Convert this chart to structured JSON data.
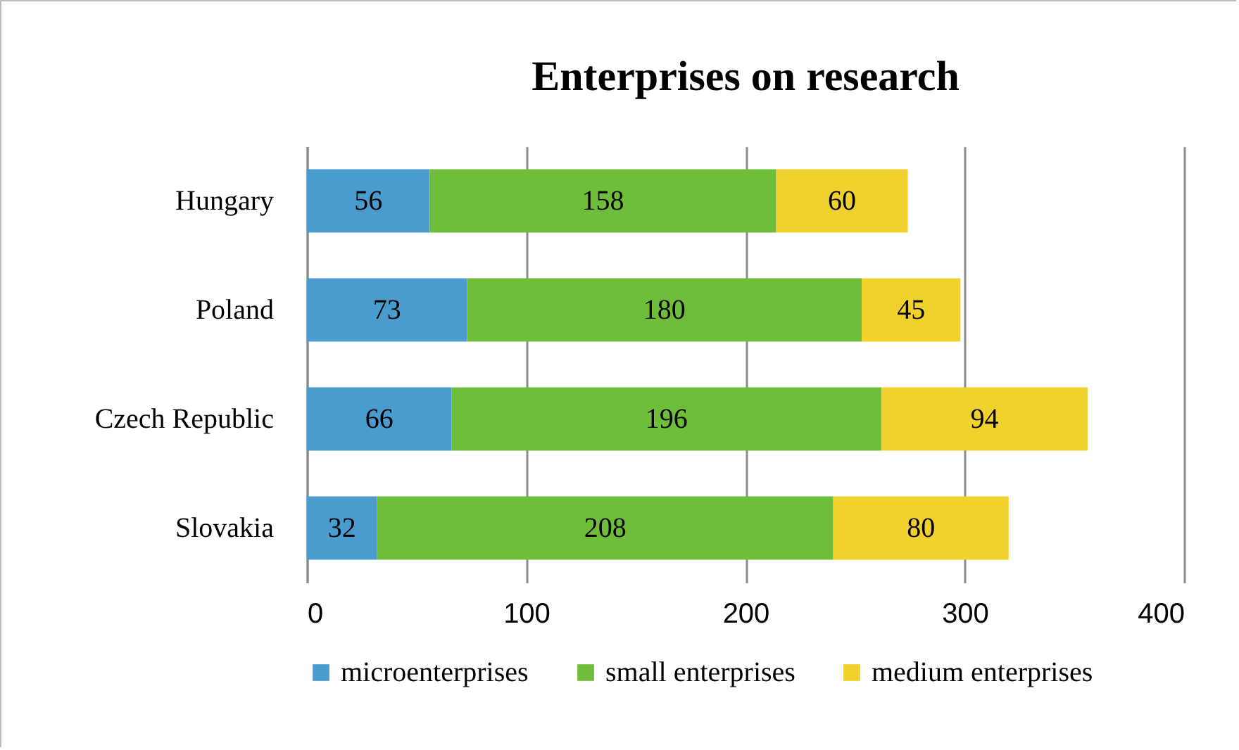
{
  "chart_data": {
    "type": "bar",
    "title": "Enterprises on research",
    "orientation": "horizontal",
    "stacked": true,
    "categories": [
      "Hungary",
      "Poland",
      "Czech Republic",
      "Slovakia"
    ],
    "series": [
      {
        "name": "microenterprises",
        "color": "#4a9ccf",
        "values": [
          56,
          73,
          66,
          32
        ]
      },
      {
        "name": "small enterprises",
        "color": "#6fbe3b",
        "values": [
          158,
          180,
          196,
          208
        ]
      },
      {
        "name": "medium enterprises",
        "color": "#f0d12e",
        "values": [
          60,
          45,
          94,
          80
        ]
      }
    ],
    "xlim": [
      0,
      400
    ],
    "xticks": [
      0,
      100,
      200,
      300,
      400
    ],
    "grid": "x",
    "legend": "bottom",
    "data_labels": true
  }
}
